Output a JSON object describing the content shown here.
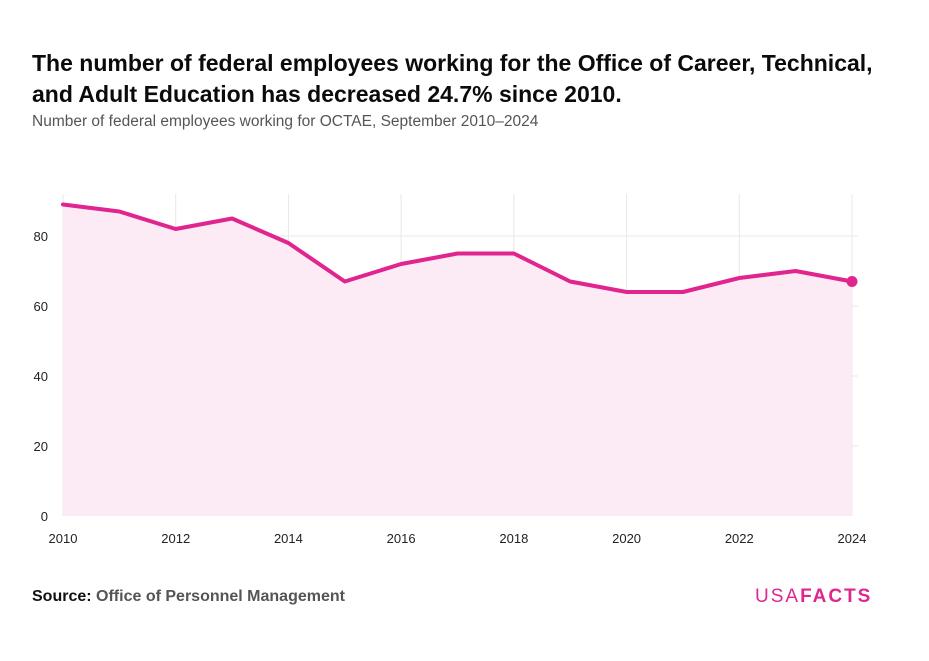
{
  "header": {
    "title": "The number of federal employees working for the Office of Career, Technical, and Adult Education has decreased 24.7% since 2010.",
    "subtitle": "Number of federal employees working for OCTAE, September 2010–2024"
  },
  "footer": {
    "source_label": "Source:",
    "source_value": "Office of Personnel Management",
    "logo_light": "USA",
    "logo_bold": "FACTS"
  },
  "colors": {
    "line": "#e0258f",
    "fill": "#fcebf4",
    "grid": "#e8e8e8"
  },
  "chart_data": {
    "type": "area",
    "title": "",
    "xlabel": "",
    "ylabel": "",
    "x": [
      2010,
      2011,
      2012,
      2013,
      2014,
      2015,
      2016,
      2017,
      2018,
      2019,
      2020,
      2021,
      2022,
      2023,
      2024
    ],
    "series": [
      {
        "values": [
          89,
          87,
          82,
          85,
          78,
          67,
          72,
          75,
          75,
          67,
          64,
          64,
          68,
          70,
          67
        ]
      }
    ],
    "xticks": [
      2010,
      2012,
      2014,
      2016,
      2018,
      2020,
      2022,
      2024
    ],
    "yticks": [
      0,
      20,
      40,
      60,
      80
    ],
    "xlim": [
      2010,
      2024
    ],
    "ylim": [
      0,
      92
    ],
    "grid": true,
    "legend": "none",
    "highlight_last_point": true
  }
}
